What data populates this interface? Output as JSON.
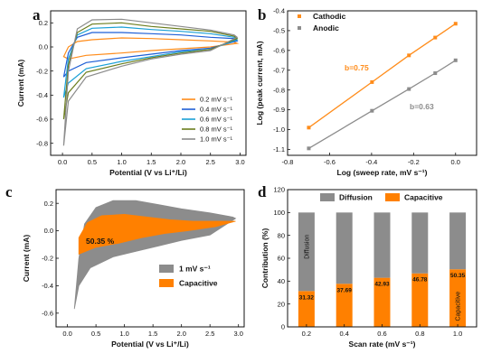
{
  "chart_data": [
    {
      "panel": "a",
      "type": "line",
      "xlabel": "Potential (V vs Li⁺/Li)",
      "ylabel": "Current (mA)",
      "xlim": [
        -0.2,
        3.1
      ],
      "ylim": [
        -0.9,
        0.3
      ],
      "xticks": [
        "0.0",
        "0.5",
        "1.0",
        "1.5",
        "2.0",
        "2.5",
        "3.0"
      ],
      "yticks": [
        "0.2",
        "0.0",
        "-0.2",
        "-0.4",
        "-0.6",
        "-0.8"
      ],
      "legend_position": "bottom-right",
      "series": [
        {
          "name": "0.2 mV s⁻¹",
          "color": "#ff8c1a",
          "top": [
            [
              0.02,
              -0.08
            ],
            [
              0.1,
              0.0
            ],
            [
              0.25,
              0.045
            ],
            [
              0.5,
              0.06
            ],
            [
              1.0,
              0.075
            ],
            [
              1.5,
              0.07
            ],
            [
              2.0,
              0.06
            ],
            [
              2.5,
              0.05
            ],
            [
              2.9,
              0.04
            ],
            [
              2.95,
              0.03
            ]
          ],
          "bottom": [
            [
              0.02,
              -0.08
            ],
            [
              0.1,
              -0.1
            ],
            [
              0.4,
              -0.07
            ],
            [
              1.0,
              -0.05
            ],
            [
              1.5,
              -0.03
            ],
            [
              2.0,
              -0.015
            ],
            [
              2.5,
              0.0
            ],
            [
              2.95,
              0.03
            ]
          ]
        },
        {
          "name": "0.4 mV s⁻¹",
          "color": "#1f5fd6",
          "top": [
            [
              0.02,
              -0.25
            ],
            [
              0.1,
              -0.05
            ],
            [
              0.25,
              0.08
            ],
            [
              0.5,
              0.12
            ],
            [
              1.0,
              0.12
            ],
            [
              1.5,
              0.11
            ],
            [
              2.0,
              0.1
            ],
            [
              2.5,
              0.08
            ],
            [
              2.9,
              0.07
            ],
            [
              2.95,
              0.05
            ]
          ],
          "bottom": [
            [
              0.02,
              -0.25
            ],
            [
              0.1,
              -0.2
            ],
            [
              0.4,
              -0.13
            ],
            [
              1.0,
              -0.09
            ],
            [
              1.5,
              -0.06
            ],
            [
              2.0,
              -0.03
            ],
            [
              2.5,
              -0.01
            ],
            [
              2.95,
              0.05
            ]
          ]
        },
        {
          "name": "0.6 mV s⁻¹",
          "color": "#1aa0d6",
          "top": [
            [
              0.02,
              -0.42
            ],
            [
              0.1,
              -0.1
            ],
            [
              0.25,
              0.1
            ],
            [
              0.5,
              0.155
            ],
            [
              1.0,
              0.165
            ],
            [
              1.5,
              0.145
            ],
            [
              2.0,
              0.13
            ],
            [
              2.5,
              0.11
            ],
            [
              2.9,
              0.08
            ],
            [
              2.95,
              0.06
            ]
          ],
          "bottom": [
            [
              0.02,
              -0.42
            ],
            [
              0.1,
              -0.3
            ],
            [
              0.4,
              -0.18
            ],
            [
              1.0,
              -0.12
            ],
            [
              1.5,
              -0.08
            ],
            [
              2.0,
              -0.04
            ],
            [
              2.5,
              -0.02
            ],
            [
              2.95,
              0.06
            ]
          ]
        },
        {
          "name": "0.8 mV s⁻¹",
          "color": "#6b7d1e",
          "top": [
            [
              0.02,
              -0.6
            ],
            [
              0.1,
              -0.15
            ],
            [
              0.25,
              0.12
            ],
            [
              0.5,
              0.19
            ],
            [
              1.0,
              0.2
            ],
            [
              1.5,
              0.17
            ],
            [
              2.0,
              0.15
            ],
            [
              2.5,
              0.13
            ],
            [
              2.9,
              0.09
            ],
            [
              2.95,
              0.07
            ]
          ],
          "bottom": [
            [
              0.02,
              -0.6
            ],
            [
              0.1,
              -0.38
            ],
            [
              0.4,
              -0.21
            ],
            [
              1.0,
              -0.14
            ],
            [
              1.5,
              -0.09
            ],
            [
              2.0,
              -0.05
            ],
            [
              2.5,
              -0.02
            ],
            [
              2.95,
              0.07
            ]
          ]
        },
        {
          "name": "1.0 mV s⁻¹",
          "color": "#8c8c8c",
          "top": [
            [
              0.02,
              -0.82
            ],
            [
              0.1,
              -0.2
            ],
            [
              0.25,
              0.15
            ],
            [
              0.5,
              0.225
            ],
            [
              1.0,
              0.23
            ],
            [
              1.5,
              0.2
            ],
            [
              2.0,
              0.17
            ],
            [
              2.5,
              0.14
            ],
            [
              2.9,
              0.1
            ],
            [
              2.95,
              0.08
            ]
          ],
          "bottom": [
            [
              0.02,
              -0.82
            ],
            [
              0.1,
              -0.45
            ],
            [
              0.4,
              -0.25
            ],
            [
              1.0,
              -0.16
            ],
            [
              1.5,
              -0.1
            ],
            [
              2.0,
              -0.06
            ],
            [
              2.5,
              -0.03
            ],
            [
              2.95,
              0.08
            ]
          ]
        }
      ]
    },
    {
      "panel": "b",
      "type": "scatter",
      "xlabel": "Log (sweep rate, mV s⁻¹)",
      "ylabel": "Log (peak current, mA)",
      "xlim": [
        -0.8,
        0.1
      ],
      "ylim": [
        -1.13,
        -0.4
      ],
      "xticks": [
        "-0.8",
        "-0.6",
        "-0.4",
        "-0.2",
        "0.0"
      ],
      "yticks": [
        "-0.4",
        "-0.5",
        "-0.6",
        "-0.7",
        "-0.8",
        "-0.9",
        "-1.0",
        "-1.1"
      ],
      "legend_position": "top-left",
      "series": [
        {
          "name": "Cathodic",
          "color": "#ff8c1a",
          "x": [
            -0.699,
            -0.398,
            -0.222,
            -0.097,
            0.0
          ],
          "y": [
            -0.99,
            -0.76,
            -0.625,
            -0.535,
            -0.465
          ],
          "annotation": "b=0.75"
        },
        {
          "name": "Anodic",
          "color": "#8c8c8c",
          "x": [
            -0.699,
            -0.398,
            -0.222,
            -0.097,
            0.0
          ],
          "y": [
            -1.095,
            -0.905,
            -0.795,
            -0.715,
            -0.65
          ],
          "annotation": "b=0.63"
        }
      ]
    },
    {
      "panel": "c",
      "type": "area",
      "xlabel": "Potential (V vs Li⁺/Li)",
      "ylabel": "Current (mA)",
      "xlim": [
        -0.2,
        3.1
      ],
      "ylim": [
        -0.7,
        0.3
      ],
      "xticks": [
        "0.0",
        "0.5",
        "1.0",
        "1.5",
        "2.0",
        "2.5",
        "3.0"
      ],
      "yticks": [
        "0.2",
        "0.0",
        "-0.2",
        "-0.4",
        "-0.6"
      ],
      "legend_position": "bottom-right",
      "annotation": "50.35 %",
      "series": [
        {
          "name": "1 mV s⁻¹",
          "color": "#8c8c8c",
          "top": [
            [
              0.12,
              -0.57
            ],
            [
              0.2,
              -0.2
            ],
            [
              0.3,
              0.05
            ],
            [
              0.5,
              0.17
            ],
            [
              0.8,
              0.22
            ],
            [
              1.2,
              0.22
            ],
            [
              1.6,
              0.19
            ],
            [
              2.0,
              0.16
            ],
            [
              2.5,
              0.13
            ],
            [
              2.9,
              0.1
            ],
            [
              2.95,
              0.09
            ]
          ],
          "bottom": [
            [
              0.12,
              -0.57
            ],
            [
              0.2,
              -0.4
            ],
            [
              0.4,
              -0.27
            ],
            [
              0.8,
              -0.19
            ],
            [
              1.2,
              -0.15
            ],
            [
              1.6,
              -0.11
            ],
            [
              2.0,
              -0.07
            ],
            [
              2.5,
              -0.03
            ],
            [
              2.95,
              0.09
            ]
          ]
        },
        {
          "name": "Capacitive",
          "color": "#ff8000",
          "top": [
            [
              0.2,
              -0.05
            ],
            [
              0.35,
              0.06
            ],
            [
              0.6,
              0.11
            ],
            [
              1.0,
              0.12
            ],
            [
              1.4,
              0.1
            ],
            [
              1.8,
              0.08
            ],
            [
              2.2,
              0.07
            ],
            [
              2.6,
              0.07
            ],
            [
              2.95,
              0.07
            ]
          ],
          "bottom": [
            [
              0.2,
              -0.05
            ],
            [
              0.2,
              -0.17
            ],
            [
              0.5,
              -0.12
            ],
            [
              0.9,
              -0.09
            ],
            [
              1.3,
              -0.05
            ],
            [
              1.7,
              -0.02
            ],
            [
              2.1,
              0.0
            ],
            [
              2.6,
              0.03
            ],
            [
              2.95,
              0.07
            ]
          ]
        }
      ]
    },
    {
      "panel": "d",
      "type": "bar",
      "xlabel": "Scan rate (mV s⁻¹)",
      "ylabel": "Contribution (%)",
      "ylim": [
        0,
        120
      ],
      "yticks": [
        "0",
        "20",
        "40",
        "60",
        "80",
        "100",
        "120"
      ],
      "categories": [
        "0.2",
        "0.4",
        "0.6",
        "0.8",
        "1.0"
      ],
      "legend_position": "top",
      "series": [
        {
          "name": "Capacitive",
          "color": "#ff8000",
          "values": [
            31.32,
            37.69,
            42.93,
            46.78,
            50.35
          ],
          "labels": [
            "31.32",
            "37.69",
            "42.93",
            "46.78",
            "50.35"
          ]
        },
        {
          "name": "Diffusion",
          "color": "#8c8c8c",
          "values": [
            68.68,
            62.31,
            57.07,
            53.22,
            49.65
          ]
        }
      ],
      "bar_text": {
        "diffusion": "Diffusion",
        "capacitive": "Capacitive"
      }
    }
  ],
  "panels": {
    "a": "a",
    "b": "b",
    "c": "c",
    "d": "d"
  }
}
